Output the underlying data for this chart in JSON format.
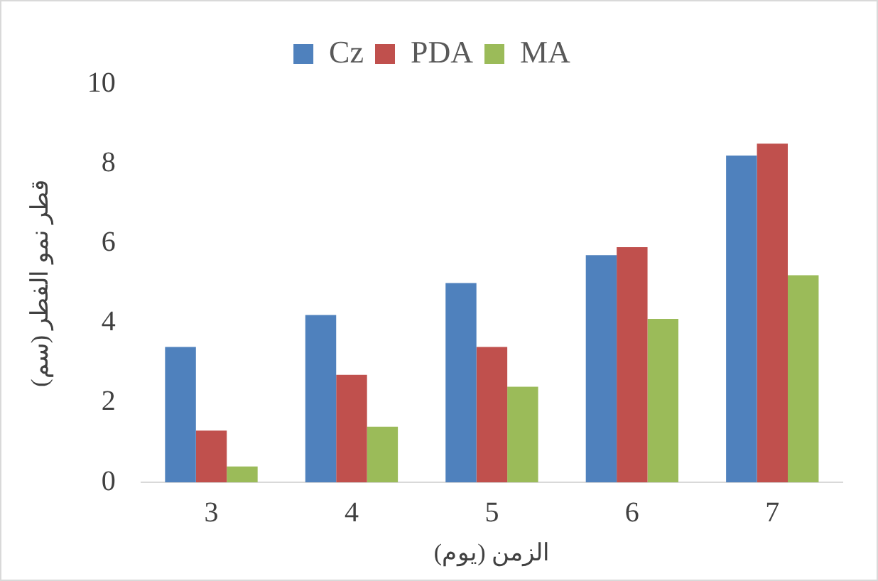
{
  "chart_data": {
    "type": "bar",
    "xlabel": "الزمن (يوم)",
    "ylabel": "قطر نمو الفطر (سم)",
    "categories": [
      "3",
      "4",
      "5",
      "6",
      "7"
    ],
    "series": [
      {
        "name": "Cz",
        "color": "#4f81bd",
        "values": [
          3.4,
          4.2,
          5.0,
          5.7,
          8.2
        ]
      },
      {
        "name": "PDA",
        "color": "#c0504d",
        "values": [
          1.3,
          2.7,
          3.4,
          5.9,
          8.5
        ]
      },
      {
        "name": "MA",
        "color": "#9bbb59",
        "values": [
          0.4,
          1.4,
          2.4,
          4.1,
          5.2
        ]
      }
    ],
    "ylim": [
      0,
      10
    ],
    "yticks": [
      0,
      2,
      4,
      6,
      8,
      10
    ],
    "grid": false,
    "legend": "top"
  }
}
